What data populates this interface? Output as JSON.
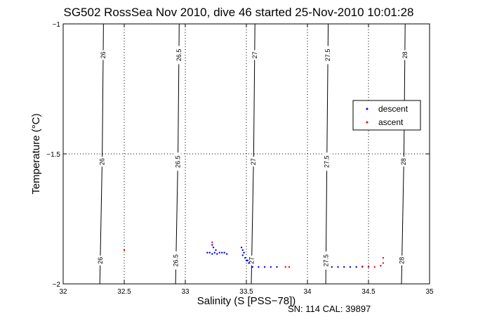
{
  "title": "SG502 RossSea Nov 2010, dive 46 started 25-Nov-2010 10:01:28",
  "footer": "SN: 114  CAL: 39897",
  "chart_data": {
    "type": "scatter",
    "xlabel": "Salinity (S [PSS−78])",
    "ylabel": "Temperature (°C)",
    "xlim": [
      32,
      35
    ],
    "ylim": [
      -2,
      -1
    ],
    "xticks": [
      32,
      32.5,
      33,
      33.5,
      34,
      34.5,
      35
    ],
    "xtick_labels": [
      "32",
      "32.5",
      "33",
      "33.5",
      "34",
      "34.5",
      "35"
    ],
    "yticks": [
      -2,
      -1.5,
      -1
    ],
    "ytick_labels": [
      "−2",
      "−1.5",
      "−1"
    ],
    "grid": true,
    "grid_ticks_x": [
      32.5,
      33,
      33.5,
      34,
      34.5
    ],
    "grid_ticks_y": [
      -1.5
    ],
    "legend_position": "right",
    "series": [
      {
        "name": "descent",
        "color": "#0000ff",
        "points": [
          {
            "x": 33.18,
            "y": -1.88
          },
          {
            "x": 33.2,
            "y": -1.88
          },
          {
            "x": 33.22,
            "y": -1.885
          },
          {
            "x": 33.24,
            "y": -1.88
          },
          {
            "x": 33.26,
            "y": -1.885
          },
          {
            "x": 33.28,
            "y": -1.88
          },
          {
            "x": 33.22,
            "y": -1.85
          },
          {
            "x": 33.23,
            "y": -1.86
          },
          {
            "x": 33.25,
            "y": -1.87
          },
          {
            "x": 33.3,
            "y": -1.88
          },
          {
            "x": 33.32,
            "y": -1.88
          },
          {
            "x": 33.34,
            "y": -1.885
          },
          {
            "x": 33.46,
            "y": -1.86
          },
          {
            "x": 33.47,
            "y": -1.87
          },
          {
            "x": 33.48,
            "y": -1.88
          },
          {
            "x": 33.47,
            "y": -1.89
          },
          {
            "x": 33.49,
            "y": -1.9
          },
          {
            "x": 33.5,
            "y": -1.91
          },
          {
            "x": 33.51,
            "y": -1.91
          },
          {
            "x": 33.52,
            "y": -1.92
          },
          {
            "x": 33.55,
            "y": -1.935
          },
          {
            "x": 33.6,
            "y": -1.935
          },
          {
            "x": 33.65,
            "y": -1.935
          },
          {
            "x": 33.7,
            "y": -1.935
          },
          {
            "x": 33.75,
            "y": -1.935
          },
          {
            "x": 34.2,
            "y": -1.935
          },
          {
            "x": 34.25,
            "y": -1.935
          },
          {
            "x": 34.3,
            "y": -1.935
          },
          {
            "x": 34.35,
            "y": -1.935
          },
          {
            "x": 34.4,
            "y": -1.935
          },
          {
            "x": 34.45,
            "y": -1.933
          },
          {
            "x": 34.5,
            "y": -1.933
          }
        ]
      },
      {
        "name": "ascent",
        "color": "#ff0000",
        "points": [
          {
            "x": 32.5,
            "y": -1.87
          },
          {
            "x": 33.22,
            "y": -1.84
          },
          {
            "x": 33.82,
            "y": -1.935
          },
          {
            "x": 33.85,
            "y": -1.935
          },
          {
            "x": 34.45,
            "y": -1.935
          },
          {
            "x": 34.5,
            "y": -1.935
          },
          {
            "x": 34.55,
            "y": -1.935
          },
          {
            "x": 34.6,
            "y": -1.93
          },
          {
            "x": 34.62,
            "y": -1.92
          },
          {
            "x": 34.62,
            "y": -1.9
          }
        ]
      }
    ],
    "contours": [
      {
        "label": "26",
        "points": [
          [
            32.33,
            -1
          ],
          [
            32.32,
            -1.5
          ],
          [
            32.3,
            -2
          ]
        ]
      },
      {
        "label": "26.5",
        "points": [
          [
            32.95,
            -1
          ],
          [
            32.94,
            -1.5
          ],
          [
            32.92,
            -2
          ]
        ]
      },
      {
        "label": "27",
        "points": [
          [
            33.57,
            -1
          ],
          [
            33.56,
            -1.5
          ],
          [
            33.54,
            -2
          ]
        ]
      },
      {
        "label": "27.5",
        "points": [
          [
            34.17,
            -1
          ],
          [
            34.16,
            -1.5
          ],
          [
            34.15,
            -2
          ]
        ]
      },
      {
        "label": "28",
        "points": [
          [
            34.8,
            -1
          ],
          [
            34.79,
            -1.5
          ],
          [
            34.77,
            -2
          ]
        ]
      }
    ],
    "contour_label_y": [
      -1.12,
      -1.53,
      -1.91
    ]
  }
}
